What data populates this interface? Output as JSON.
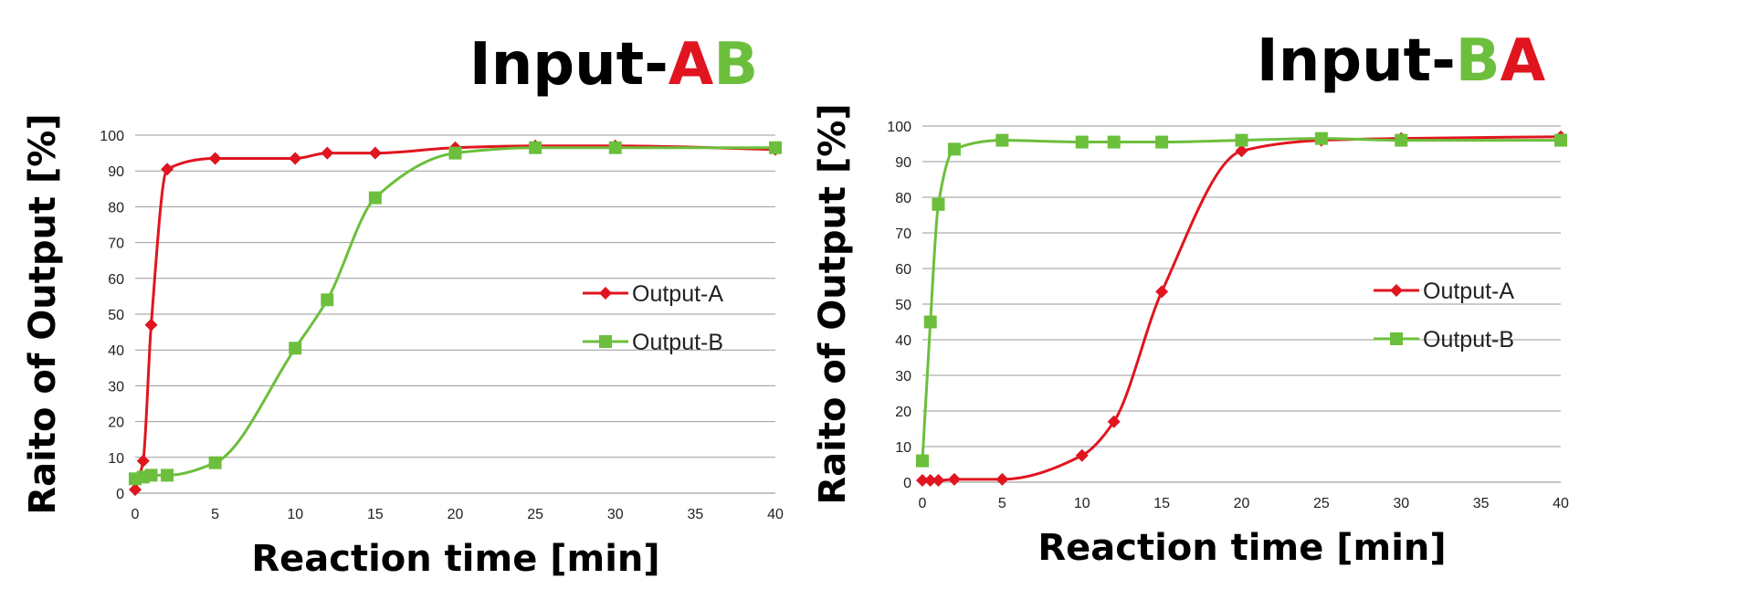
{
  "chart_data": [
    {
      "type": "line",
      "title": {
        "prefix": "Input-",
        "parts": [
          {
            "text": "A",
            "color": "#e0151f"
          },
          {
            "text": "B",
            "color": "#6cbf3c"
          }
        ]
      },
      "xlabel": "Reaction time [min]",
      "ylabel": "Raito of Output [%]",
      "xlim": [
        0,
        40
      ],
      "ylim": [
        0,
        100
      ],
      "xticks": [
        0,
        5,
        10,
        15,
        20,
        25,
        30,
        35,
        40
      ],
      "yticks": [
        0,
        10,
        20,
        30,
        40,
        50,
        60,
        70,
        80,
        90,
        100
      ],
      "grid": "horizontal",
      "legend_position": "right",
      "series": [
        {
          "name": "Output-A",
          "color": "#e0151f",
          "marker": "diamond",
          "x": [
            0,
            0.5,
            1,
            2,
            5,
            10,
            12,
            15,
            20,
            25,
            30,
            40
          ],
          "y": [
            1,
            9,
            47,
            90.5,
            93.5,
            93.5,
            95,
            95,
            96.5,
            97,
            97,
            96
          ]
        },
        {
          "name": "Output-B",
          "color": "#6cbf3c",
          "marker": "square",
          "x": [
            0,
            0.5,
            1,
            2,
            5,
            10,
            12,
            15,
            20,
            25,
            30,
            40
          ],
          "y": [
            4,
            4.5,
            5,
            5,
            8.5,
            40.5,
            54,
            82.5,
            95,
            96.5,
            96.5,
            96.5
          ]
        }
      ]
    },
    {
      "type": "line",
      "title": {
        "prefix": "Input-",
        "parts": [
          {
            "text": "B",
            "color": "#6cbf3c"
          },
          {
            "text": "A",
            "color": "#e0151f"
          }
        ]
      },
      "xlabel": "Reaction time [min]",
      "ylabel": "Raito of Output [%]",
      "xlim": [
        0,
        40
      ],
      "ylim": [
        0,
        100
      ],
      "xticks": [
        0,
        5,
        10,
        15,
        20,
        25,
        30,
        35,
        40
      ],
      "yticks": [
        0,
        10,
        20,
        30,
        40,
        50,
        60,
        70,
        80,
        90,
        100
      ],
      "grid": "horizontal",
      "legend_position": "right",
      "series": [
        {
          "name": "Output-A",
          "color": "#e0151f",
          "marker": "diamond",
          "x": [
            0,
            0.5,
            1,
            2,
            5,
            10,
            12,
            15,
            20,
            25,
            30,
            40
          ],
          "y": [
            0.5,
            0.5,
            0.5,
            0.8,
            0.8,
            7.5,
            17,
            53.5,
            93,
            96,
            96.5,
            97
          ]
        },
        {
          "name": "Output-B",
          "color": "#6cbf3c",
          "marker": "square",
          "x": [
            0,
            0.5,
            1,
            2,
            5,
            10,
            12,
            15,
            20,
            25,
            30,
            40
          ],
          "y": [
            6,
            45,
            78,
            93.5,
            96,
            95.5,
            95.5,
            95.5,
            96,
            96.5,
            96,
            96
          ]
        }
      ]
    }
  ]
}
